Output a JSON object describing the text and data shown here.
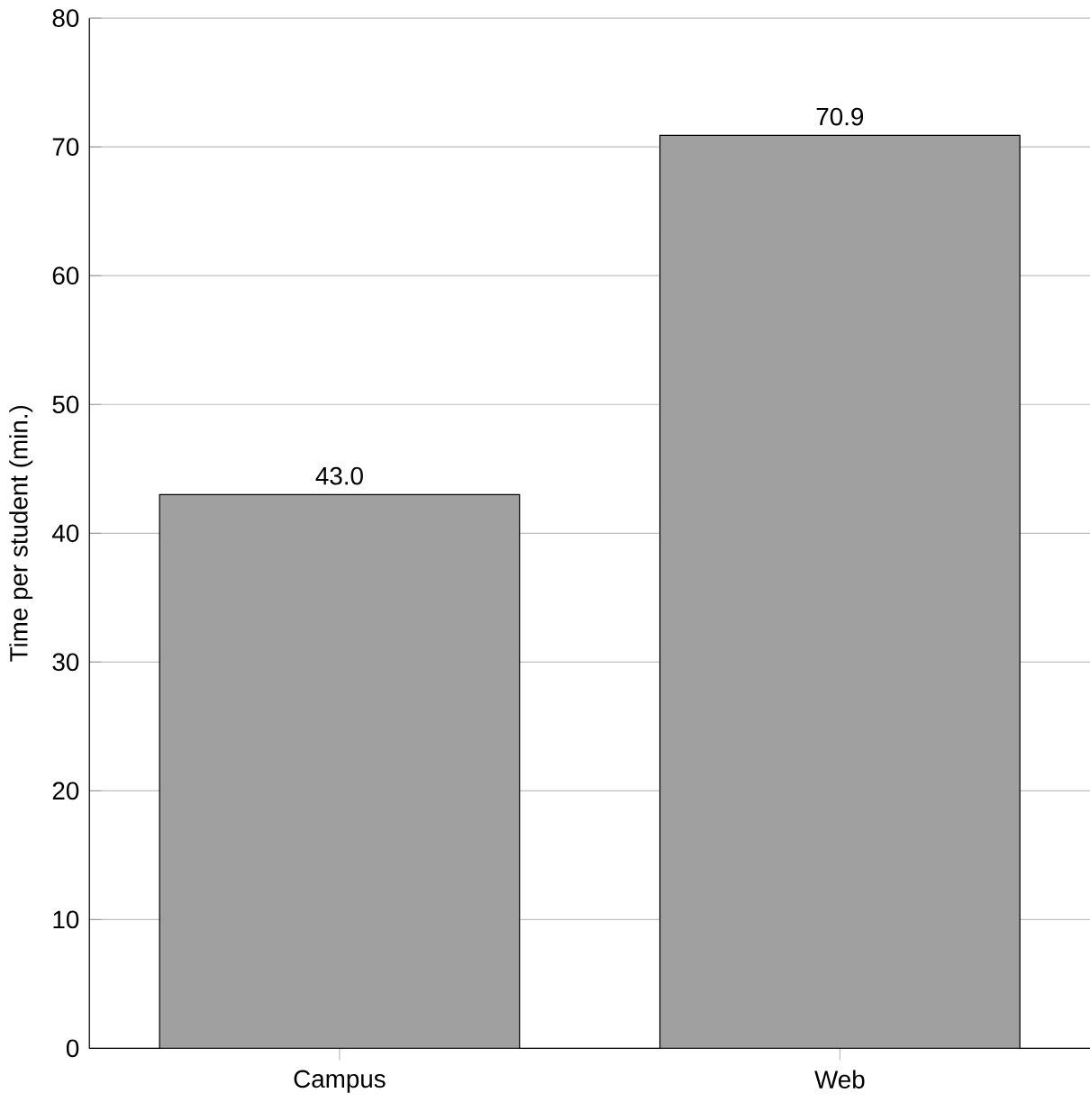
{
  "chart_data": {
    "type": "bar",
    "ylabel": "Time per student (min.)",
    "categories": [
      "Campus",
      "Web"
    ],
    "values": [
      43.0,
      70.9
    ],
    "color": "#a0a0a0",
    "ylim": [
      0,
      80
    ],
    "yticks": [
      0,
      10,
      20,
      30,
      40,
      50,
      60,
      70,
      80
    ],
    "grid": "y",
    "value_labels": [
      "43.0",
      "70.9"
    ]
  }
}
